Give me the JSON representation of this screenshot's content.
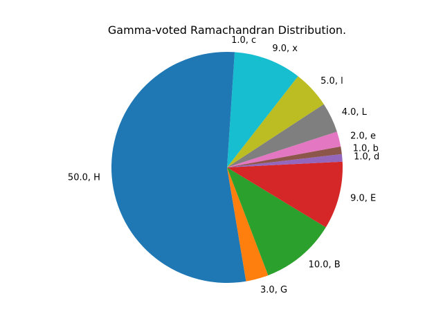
{
  "chart_data": {
    "type": "pie",
    "title": "Gamma-voted Ramachandran Distribution.",
    "start_angle_deg": 90,
    "direction": "counterclockwise",
    "label_format": "{value}, {label}",
    "slices": [
      {
        "label": "H",
        "value": 50.0,
        "display": "50.0, H",
        "color": "#1f77b4"
      },
      {
        "label": "G",
        "value": 3.0,
        "display": "3.0, G",
        "color": "#ff7f0e"
      },
      {
        "label": "B",
        "value": 10.0,
        "display": "10.0, B",
        "color": "#2ca02c"
      },
      {
        "label": "E",
        "value": 9.0,
        "display": "9.0, E",
        "color": "#d62728"
      },
      {
        "label": "d",
        "value": 1.0,
        "display": "1.0, d",
        "color": "#9467bd"
      },
      {
        "label": "b",
        "value": 1.0,
        "display": "1.0, b",
        "color": "#8c564b"
      },
      {
        "label": "e",
        "value": 2.0,
        "display": "2.0, e",
        "color": "#e377c2"
      },
      {
        "label": "L",
        "value": 4.0,
        "display": "4.0, L",
        "color": "#7f7f7f"
      },
      {
        "label": "l",
        "value": 5.0,
        "display": "5.0, l",
        "color": "#bcbd22"
      },
      {
        "label": "x",
        "value": 9.0,
        "display": "9.0, x",
        "color": "#17becf"
      },
      {
        "label": "c",
        "value": 1.0,
        "display": "1.0, c",
        "color": "#1f77b4"
      }
    ]
  }
}
